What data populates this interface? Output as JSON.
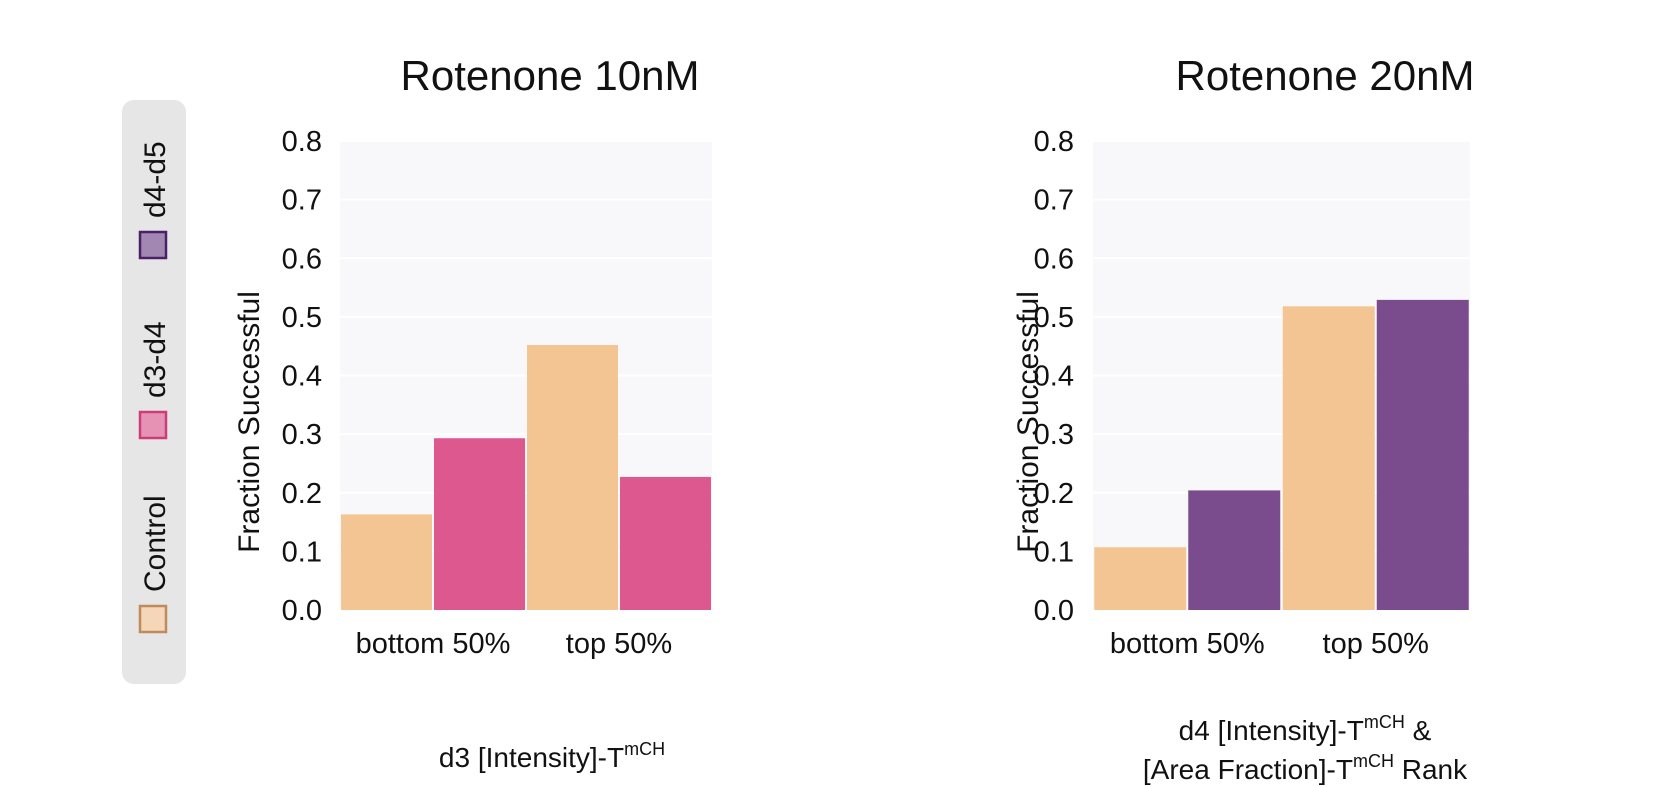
{
  "chart_data": [
    {
      "type": "bar",
      "title": "Rotenone 10nM",
      "ylabel": "Fraction Successful",
      "xlabel": {
        "main": "d3 [Intensity]-T",
        "sup": "mCH",
        "rest": ""
      },
      "categories": [
        "bottom 50%",
        "top 50%"
      ],
      "yticks": [
        "0.0",
        "0.1",
        "0.2",
        "0.3",
        "0.4",
        "0.5",
        "0.6",
        "0.7",
        "0.8"
      ],
      "ylim": [
        0,
        0.8
      ],
      "grid": true,
      "series": [
        {
          "name": "Control",
          "color": "#f2c592",
          "values": [
            0.163,
            0.452
          ]
        },
        {
          "name": "d3-d4",
          "color": "#de5890",
          "values": [
            0.293,
            0.227
          ]
        }
      ]
    },
    {
      "type": "bar",
      "title": "Rotenone 20nM",
      "ylabel": "Fraction Successful",
      "xlabel": {
        "line1": {
          "main": "d4 [Intensity]-T",
          "sup": "mCH",
          "rest": " &"
        },
        "line2": {
          "main": "[Area Fraction]-T",
          "sup": "mCH",
          "rest": " Rank"
        }
      },
      "categories": [
        "bottom 50%",
        "top 50%"
      ],
      "yticks": [
        "0.0",
        "0.1",
        "0.2",
        "0.3",
        "0.4",
        "0.5",
        "0.6",
        "0.7",
        "0.8"
      ],
      "ylim": [
        0,
        0.8
      ],
      "grid": true,
      "series": [
        {
          "name": "Control",
          "color": "#f2c592",
          "values": [
            0.107,
            0.518
          ]
        },
        {
          "name": "d4-d5",
          "color": "#7b4c8d",
          "values": [
            0.204,
            0.529
          ]
        }
      ]
    }
  ],
  "legend": {
    "placement": "left",
    "orientation": "vertical-rotated",
    "items": [
      {
        "label": "Control",
        "fill": "#f5d6b8",
        "stroke": "#c08a5c"
      },
      {
        "label": "d3-d4",
        "fill": "#e692b4",
        "stroke": "#cf3b78"
      },
      {
        "label": "d4-d5",
        "fill": "#a287b3",
        "stroke": "#4b2068"
      }
    ]
  }
}
